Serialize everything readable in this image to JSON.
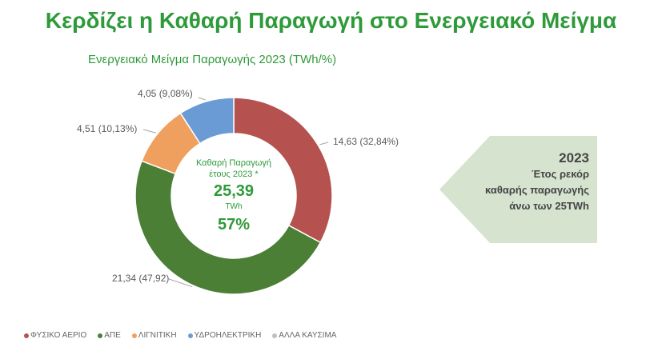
{
  "header": {
    "title": "Κερδίζει η Καθαρή Παραγωγή στο Ενεργειακό Μείγμα",
    "subtitle": "Ενεργειακό Μείγμα Παραγωγής 2023 (TWh/%)"
  },
  "chart_data": {
    "type": "pie",
    "donut": true,
    "title": "Ενεργειακό Μείγμα Παραγωγής 2023 (TWh/%)",
    "categories": [
      "ΦΥΣΙΚΟ ΑΕΡΙΟ",
      "ΑΠΕ",
      "ΛΙΓΝΙΤΙΚΗ",
      "ΥΔΡΟΗΛΕΚΤΡΙΚΗ",
      "ΑΛΛΑ ΚΑΥΣΙΜΑ"
    ],
    "values": [
      14.63,
      21.34,
      4.51,
      4.05,
      0
    ],
    "percents": [
      32.84,
      47.92,
      10.13,
      9.08,
      0
    ],
    "data_labels": [
      "14,63 (32,84%)",
      "21,34 (47,92)",
      "4,51 (10,13%)",
      "4,05 (9,08%)",
      ""
    ],
    "colors": [
      "#b5524f",
      "#4a7f35",
      "#f0a05e",
      "#6b9bd4",
      "#bfbfbf"
    ],
    "legend_placement": "bottom-left"
  },
  "center": {
    "line1": "Καθαρή Παραγωγή",
    "line2": "έτους 2023 *",
    "value": "25,39",
    "unit": "TWh",
    "percent": "57%"
  },
  "callout": {
    "year": "2023",
    "line1": "Έτος ρεκόρ",
    "line2": "καθαρής παραγωγής",
    "line3": "άνω των 25TWh"
  },
  "colors": {
    "accent": "#2e9a3a",
    "callout_bg": "#d6e3cf"
  }
}
